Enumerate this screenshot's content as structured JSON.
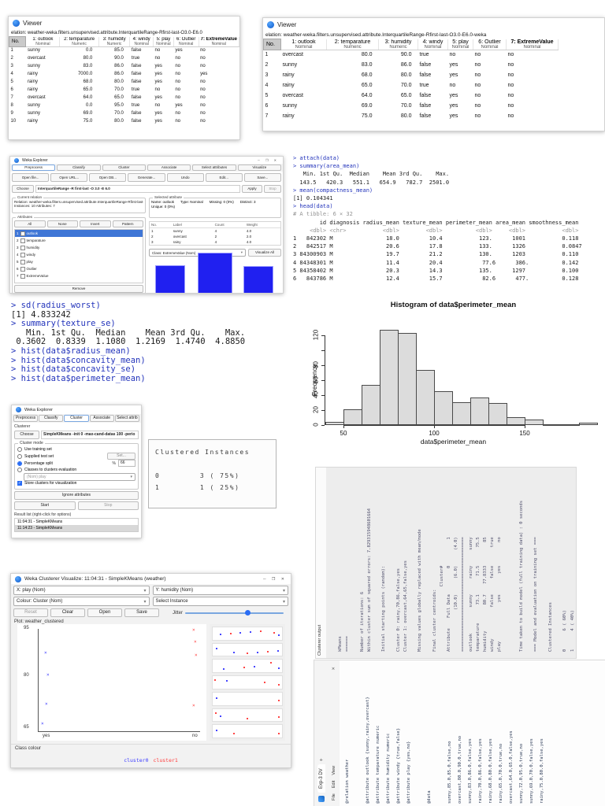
{
  "viewer1": {
    "title": "Viewer",
    "relation": "elation: weather-weka.filters.unsupervised.attribute.InterquartileRange-Rfirst-last-O3.0-E6.0",
    "no_label": "No.",
    "columns": [
      {
        "name": "1: outlook",
        "type": "Nominal",
        "num": false,
        "bold": false
      },
      {
        "name": "2: temparature",
        "type": "Numeric",
        "num": true,
        "bold": false
      },
      {
        "name": "3: humidity",
        "type": "Numeric",
        "num": true,
        "bold": false
      },
      {
        "name": "4: windy",
        "type": "Nominal",
        "num": false,
        "bold": false
      },
      {
        "name": "5: play",
        "type": "Nominal",
        "num": false,
        "bold": false
      },
      {
        "name": "6: Outlier",
        "type": "Nominal",
        "num": false,
        "bold": false
      },
      {
        "name": "7: ExtremeValue",
        "type": "Nominal",
        "num": false,
        "bold": true
      }
    ],
    "rows": [
      [
        "1",
        "sunny",
        "0.0",
        "85.0",
        "false",
        "no",
        "yes",
        "no"
      ],
      [
        "2",
        "overcast",
        "80.0",
        "90.0",
        "true",
        "no",
        "no",
        "no"
      ],
      [
        "3",
        "sunny",
        "83.0",
        "86.0",
        "false",
        "yes",
        "no",
        "no"
      ],
      [
        "4",
        "rainy",
        "7000.0",
        "86.0",
        "false",
        "yes",
        "no",
        "yes"
      ],
      [
        "5",
        "rainy",
        "68.0",
        "80.0",
        "false",
        "yes",
        "no",
        "no"
      ],
      [
        "6",
        "rainy",
        "65.0",
        "70.0",
        "true",
        "no",
        "no",
        "no"
      ],
      [
        "7",
        "overcast",
        "64.0",
        "65.0",
        "false",
        "yes",
        "no",
        "no"
      ],
      [
        "8",
        "sunny",
        "0.0",
        "95.0",
        "true",
        "no",
        "yes",
        "no"
      ],
      [
        "9",
        "sunny",
        "69.0",
        "70.0",
        "false",
        "yes",
        "no",
        "no"
      ],
      [
        "10",
        "rainy",
        "75.0",
        "80.0",
        "false",
        "yes",
        "no",
        "no"
      ]
    ]
  },
  "viewer2": {
    "title": "Viewer",
    "relation": "elation: weather-weka.filters.unsupervised.attribute.InterquartileRange-Rfirst-last-O3.0-E6.0-weka",
    "no_label": "No.",
    "columns": [
      {
        "name": "1: outlook",
        "type": "Nominal",
        "num": false,
        "bold": false
      },
      {
        "name": "2: temparature",
        "type": "Numeric",
        "num": true,
        "bold": false
      },
      {
        "name": "3: humidity",
        "type": "Numeric",
        "num": true,
        "bold": false
      },
      {
        "name": "4: windy",
        "type": "Nominal",
        "num": false,
        "bold": false
      },
      {
        "name": "5: play",
        "type": "Nominal",
        "num": false,
        "bold": false
      },
      {
        "name": "6: Outlier",
        "type": "Nominal",
        "num": false,
        "bold": false
      },
      {
        "name": "7: ExtremeValue",
        "type": "Nominal",
        "num": false,
        "bold": true
      }
    ],
    "rows": [
      [
        "1",
        "overcast",
        "80.0",
        "90.0",
        "true",
        "no",
        "no",
        "no"
      ],
      [
        "2",
        "sunny",
        "83.0",
        "86.0",
        "false",
        "yes",
        "no",
        "no"
      ],
      [
        "3",
        "rainy",
        "68.0",
        "80.0",
        "false",
        "yes",
        "no",
        "no"
      ],
      [
        "4",
        "rainy",
        "65.0",
        "70.0",
        "true",
        "no",
        "no",
        "no"
      ],
      [
        "5",
        "overcast",
        "64.0",
        "65.0",
        "false",
        "yes",
        "no",
        "no"
      ],
      [
        "6",
        "sunny",
        "69.0",
        "70.0",
        "false",
        "yes",
        "no",
        "no"
      ],
      [
        "7",
        "rainy",
        "75.0",
        "80.0",
        "false",
        "yes",
        "no",
        "no"
      ]
    ]
  },
  "explorer": {
    "title": "Weka Explorer",
    "window_controls": "─ ❐ ✕",
    "tabs": [
      "Preprocess",
      "Classify",
      "Cluster",
      "Associate",
      "Select attributes",
      "Visualize"
    ],
    "buttons": [
      "Open file...",
      "Open URL...",
      "Open DB...",
      "Generate...",
      "Undo",
      "Edit...",
      "Save..."
    ],
    "choose": "Choose",
    "filter_name": "InterquartileRange -R first-last -O 3.0 -E 6.0",
    "apply": "Apply",
    "stop": "Stop",
    "current_relation": "Current relation",
    "relation_line": "Relation: weather-weka.filters.unsupervised.attribute.InterquartileRange-Rfirst-last-O3.0-E6.0",
    "instances_line": "Instances: 10    Attributes: 7",
    "attributes_label": "Attributes",
    "attr_buttons": [
      "All",
      "None",
      "Invert",
      "Pattern"
    ],
    "attributes": [
      "outlook",
      "temparature",
      "humidity",
      "windy",
      "play",
      "Outlier",
      "ExtremeValue"
    ],
    "remove": "Remove",
    "selected_attribute": "Selected attribute",
    "name_line": "Name: outlook",
    "type_line": "Type: Nominal",
    "missing_line": "Missing: 0 (0%)",
    "distinct_line": "Distinct: 3",
    "unique_line": "Unique: 0 (0%)",
    "count_headers": [
      "No.",
      "Label",
      "Count",
      "Weight"
    ],
    "count_rows": [
      [
        "1",
        "sunny",
        "4",
        "4.0"
      ],
      [
        "2",
        "overcast",
        "2",
        "2.0"
      ],
      [
        "3",
        "rainy",
        "4",
        "4.0"
      ]
    ],
    "class_selector": "Class: ExtremeValue (Nom)",
    "visualize_all": "Visualize All",
    "hist_heights": [
      36,
      52,
      35
    ],
    "bar_color": "#2020f0"
  },
  "console_right": {
    "lines": [
      {
        "c": "cmd",
        "t": "> attach(data)"
      },
      {
        "c": "cmd",
        "t": "> summary(area_mean)"
      },
      {
        "c": "out",
        "t": "   Min. 1st Qu.  Median    Mean 3rd Qu.    Max. "
      },
      {
        "c": "out",
        "t": "  143.5   420.3   551.1   654.9   782.7  2501.0 "
      },
      {
        "c": "cmd",
        "t": "> mean(compactness_mean)"
      },
      {
        "c": "out",
        "t": "[1] 0.104341"
      },
      {
        "c": "cmd",
        "t": "> head(data)"
      },
      {
        "c": "dim",
        "t": "# A tibble: 6 × 32"
      },
      {
        "c": "out",
        "t": "        id diagnosis radius_mean texture_mean perimeter_mean area_mean smoothness_mean"
      },
      {
        "c": "dim",
        "t": "     <dbl> <chr>           <dbl>        <dbl>          <dbl>     <dbl>           <dbl>"
      },
      {
        "c": "out",
        "t": "1   842302 M                18.0         10.4           123.      1001           0.118 "
      },
      {
        "c": "out",
        "t": "2   842517 M                20.6         17.8           133.      1326           0.0847"
      },
      {
        "c": "out",
        "t": "3 84300903 M                19.7         21.2           130.      1203           0.110 "
      },
      {
        "c": "out",
        "t": "4 84348301 M                11.4         20.4            77.6      386.          0.142 "
      },
      {
        "c": "out",
        "t": "5 84358402 M                20.3         14.3           135.      1297           0.100 "
      },
      {
        "c": "out",
        "t": "6   843786 M                12.4         15.7            82.6      477.          0.128 "
      }
    ]
  },
  "console_left": {
    "lines": [
      {
        "c": "cmd",
        "t": "> sd(radius_worst)"
      },
      {
        "c": "out",
        "t": "[1] 4.833242"
      },
      {
        "c": "cmd",
        "t": "> summary(texture_se)"
      },
      {
        "c": "out",
        "t": "   Min. 1st Qu.  Median    Mean 3rd Qu.    Max. "
      },
      {
        "c": "out",
        "t": " 0.3602  0.8339  1.1080  1.2169  1.4740  4.8850 "
      },
      {
        "c": "cmd",
        "t": "> hist(data$radius_mean)"
      },
      {
        "c": "cmd",
        "t": "> hist(data$concavity_mean)"
      },
      {
        "c": "cmd",
        "t": "> hist(data$concavity_se)"
      },
      {
        "c": "cmd",
        "t": "> hist(data$perimeter_mean)"
      }
    ]
  },
  "chart_data": {
    "type": "histogram",
    "title": "Histogram of data$perimeter_mean",
    "xlabel": "data$perimeter_mean",
    "ylabel": "Frequency",
    "bin_start": 40,
    "bin_width": 10,
    "counts": [
      4,
      21,
      54,
      127,
      123,
      74,
      45,
      31,
      37,
      29,
      11,
      7,
      1,
      1,
      3
    ],
    "x_ticks": [
      50,
      100,
      150
    ],
    "y_ticks": [
      0,
      20,
      40,
      60,
      80,
      100,
      120
    ],
    "y_tick_labels": [
      "0",
      "20",
      "40",
      "60",
      "80",
      "",
      "120"
    ],
    "xlim": [
      40,
      190
    ],
    "ylim": [
      0,
      130
    ],
    "grid": false
  },
  "cluster_window": {
    "title": "Weka Explorer",
    "tabs": [
      "Preprocess",
      "Classify",
      "Cluster",
      "Associate",
      "Select attrib"
    ],
    "active_tab_index": 2,
    "clusterer_label": "Clusterer",
    "choose": "Choose",
    "scheme": "SimpleKMeans -init 0 -max-cand-datas 100 -perio",
    "cluster_mode_label": "Cluster mode",
    "modes": [
      {
        "label": "Use training set"
      },
      {
        "label": "Supplied test set"
      },
      {
        "label": "Percentage split"
      },
      {
        "label": "Classes to clusters evaluation"
      }
    ],
    "set_button": "Set...",
    "pct_label": "%",
    "pct_value": "66",
    "class_dropdown": "(Nom) play",
    "store_checkbox": "Store clusters for visualization",
    "ignore_button": "Ignore attributes",
    "start": "Start",
    "stop": "Stop",
    "result_list_label": "Result list (right-click for options)",
    "results": [
      "11:04:31 - SimpleKMeans",
      "11:14:23 - SimpleKMeans"
    ],
    "selected_result_index": 1
  },
  "clustered_panel": {
    "lines": [
      "Clustered Instances",
      "",
      "0        3 ( 75%)",
      "1        1 ( 25%)"
    ]
  },
  "clusterer_output": {
    "tab_label": "Clusterer output",
    "lines": [
      "kMeans",
      "======",
      "",
      "Number of iterations: 6",
      "Within cluster sum of squared errors: 7.829315948601664",
      "",
      "Initial starting points (random):",
      "",
      "Cluster 0: rainy,70,86,false,yes",
      "Cluster 1: overcast,64,65,false,yes",
      "",
      "Missing values globally replaced with mean/mode",
      "",
      "Final cluster centroids:",
      "                         Cluster#",
      "Attribute    Full Data          0          1",
      "                (10.0)      (6.0)      (4.0)",
      "============================================",
      "outlook          sunny      rainy      sunny",
      "temparature       73.1       71.5       75.5",
      "humidity          80.7    77.8333         85",
      "windy            false      false       true",
      "play               yes        yes         no",
      "",
      "",
      "Time taken to build model (full training data) : 0 seconds",
      "",
      "=== Model and evaluation on training set ===",
      "",
      "Clustered Instances",
      "",
      "0       6 ( 60%)",
      "1       4 ( 40%)"
    ]
  },
  "visualize": {
    "title": "Weka Clusterer Visualize: 11:04:31 - SimpleKMeans (weather)",
    "window_controls": "─ ❐ ✕",
    "x_combo": "X: play (Nom)",
    "y_combo": "Y: humidity (Nom)",
    "colour_combo": "Colour: Cluster (Nom)",
    "select_instance": "Select Instance",
    "buttons": [
      "Reset",
      "Clear",
      "Open",
      "Save"
    ],
    "jitter_label": "Jitter",
    "plot_label": "Plot: weather_clustered",
    "y_ticks": [
      "95",
      "80",
      "65"
    ],
    "x_ticks": [
      "yes",
      "no"
    ],
    "points": [
      {
        "x": 0.03,
        "y": 0.24,
        "c": "#4444ff"
      },
      {
        "x": 0.045,
        "y": 0.47,
        "c": "#4444ff"
      },
      {
        "x": 0.035,
        "y": 0.77,
        "c": "#4444ff"
      },
      {
        "x": 0.01,
        "y": 0.97,
        "c": "#4444ff"
      },
      {
        "x": 0.97,
        "y": 0.01,
        "c": "#ff4444"
      },
      {
        "x": 0.98,
        "y": 0.13,
        "c": "#ff4444"
      },
      {
        "x": 0.985,
        "y": 0.27,
        "c": "#ff4444"
      },
      {
        "x": 0.97,
        "y": 0.78,
        "c": "#ff4444"
      }
    ],
    "strips": [
      {
        "dots": [
          [
            0.1,
            "b"
          ],
          [
            0.25,
            "r"
          ],
          [
            0.4,
            "b"
          ],
          [
            0.55,
            "b"
          ],
          [
            0.7,
            "r"
          ],
          [
            0.9,
            "r"
          ],
          [
            0.97,
            "b"
          ]
        ]
      },
      {
        "dots": [
          [
            0.05,
            "b"
          ],
          [
            0.3,
            "b"
          ],
          [
            0.5,
            "r"
          ],
          [
            0.65,
            "b"
          ],
          [
            0.8,
            "r"
          ],
          [
            0.95,
            "b"
          ]
        ]
      },
      {
        "dots": [
          [
            0.15,
            "b"
          ],
          [
            0.45,
            "r"
          ],
          [
            0.6,
            "b"
          ],
          [
            0.85,
            "r"
          ],
          [
            0.97,
            "b"
          ]
        ]
      },
      {
        "dots": [
          [
            0.02,
            "r"
          ],
          [
            0.2,
            "b"
          ],
          [
            0.75,
            "r"
          ],
          [
            0.97,
            "r"
          ]
        ]
      },
      {
        "dots": [
          [
            0.05,
            "b"
          ],
          [
            0.97,
            "r"
          ]
        ]
      },
      {
        "dots": [
          [
            0.03,
            "r"
          ],
          [
            0.1,
            "b"
          ],
          [
            0.5,
            "r"
          ],
          [
            0.97,
            "r"
          ]
        ]
      },
      {
        "dots": [
          [
            0.05,
            "b"
          ],
          [
            0.3,
            "r"
          ],
          [
            0.97,
            "r"
          ]
        ]
      }
    ],
    "class_colour_label": "Class colour",
    "legend": [
      {
        "label": "cluster0",
        "color": "#3b3bff"
      },
      {
        "label": "cluster1",
        "color": "#ff3b3b"
      }
    ]
  },
  "notepad": {
    "tab": "Exp-3 DV",
    "new_tab": "+",
    "close": "✕",
    "menu": [
      "File",
      "Edit",
      "View"
    ],
    "lines": [
      "@relation weather",
      "",
      "@attribute outlook {sunny,rainy,overcast}",
      "@attribute temparature numeric",
      "@attribute humidity numeric",
      "@attribute windy {true,false}",
      "@attribute play {yes,no}",
      "",
      "@data",
      "",
      "sunny,85.0,85.0,false,no",
      "overcast,80.0,90.0,true,no",
      "sunny,83.0,86.0,false,yes",
      "rainy,70.0,86.0,false,yes",
      "rainy,68.0,80.0,false,yes",
      "rainy,65.0,70.0,true,no",
      "overcast,64.0,65.0,false,yes",
      "sunny,72.0,95.0,true,no",
      "sunny,69.0,70.0,false,yes",
      "rainy,75.0,80.0,false,yes"
    ]
  }
}
